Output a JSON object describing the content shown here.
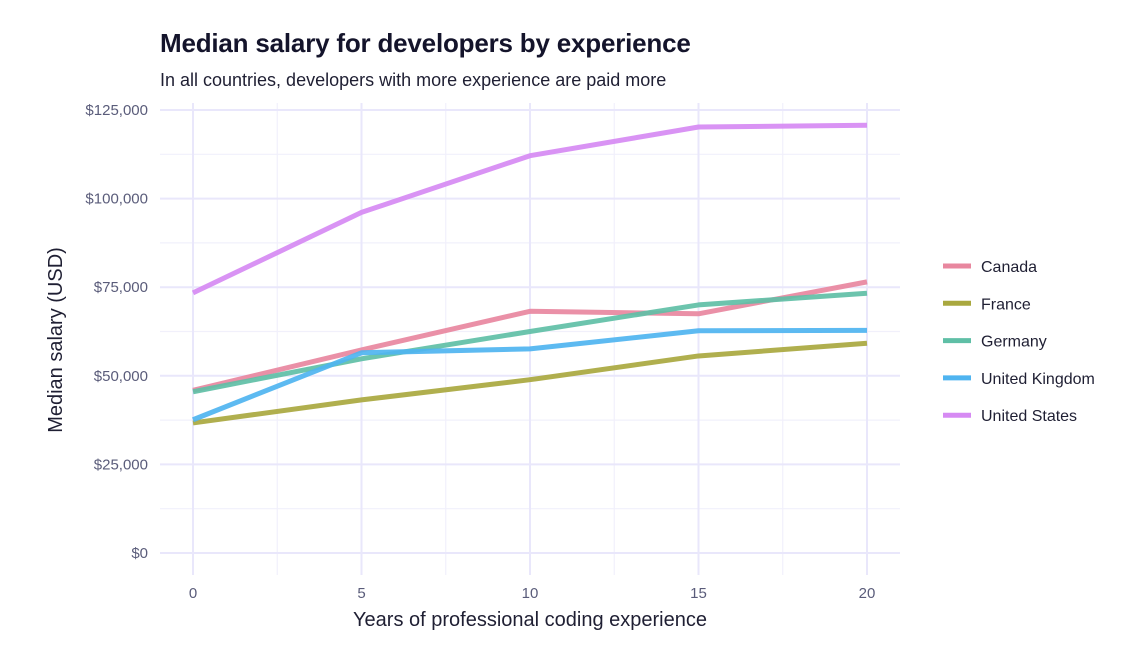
{
  "chart_data": {
    "type": "line",
    "title": "Median salary for developers by experience",
    "subtitle": "In all countries, developers with more experience are paid more",
    "xlabel": "Years of professional coding experience",
    "ylabel": "Median salary (USD)",
    "x": [
      0,
      5,
      10,
      15,
      20
    ],
    "xticks": [
      0,
      5,
      10,
      15,
      20
    ],
    "xtick_labels": [
      "0",
      "5",
      "10",
      "15",
      "20"
    ],
    "xlim": [
      -1,
      21
    ],
    "yticks": [
      0,
      25000,
      50000,
      75000,
      100000,
      125000
    ],
    "ytick_labels": [
      "$0",
      "$25,000",
      "$50,000",
      "$75,000",
      "$100,000",
      "$125,000"
    ],
    "ylim": [
      -6000,
      127000
    ],
    "grid": true,
    "legend_position": "right",
    "series": [
      {
        "name": "Canada",
        "color": "#e8879f",
        "values": [
          45900,
          57300,
          68200,
          67500,
          76500
        ]
      },
      {
        "name": "France",
        "color": "#a9a83f",
        "values": [
          36700,
          43200,
          48900,
          55600,
          59200
        ]
      },
      {
        "name": "Germany",
        "color": "#5fbfa6",
        "values": [
          45500,
          54800,
          62500,
          70000,
          73300
        ]
      },
      {
        "name": "United Kingdom",
        "color": "#4fb4f0",
        "values": [
          37600,
          56500,
          57600,
          62700,
          62800
        ]
      },
      {
        "name": "United States",
        "color": "#d68af3",
        "values": [
          73400,
          96100,
          112100,
          120200,
          120700
        ]
      }
    ]
  }
}
